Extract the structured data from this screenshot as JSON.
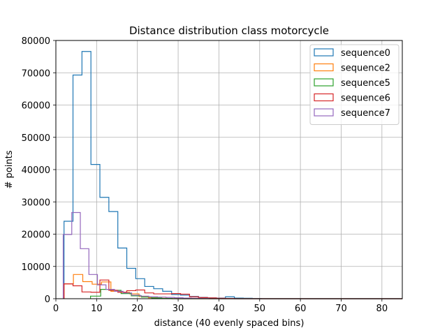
{
  "chart_data": {
    "type": "histogram",
    "title": "Distance distribution class motorcycle",
    "xlabel": "distance (40 evenly spaced bins)",
    "ylabel": "# points",
    "xlim": [
      0,
      85
    ],
    "ylim": [
      0,
      80000
    ],
    "x_ticks": [
      0,
      10,
      20,
      30,
      40,
      50,
      60,
      70,
      80
    ],
    "y_ticks": [
      0,
      10000,
      20000,
      30000,
      40000,
      50000,
      60000,
      70000,
      80000
    ],
    "grid": true,
    "legend_position": "top-right",
    "series": [
      {
        "name": "sequence0",
        "color": "#1f77b4",
        "bins": [
          [
            2.0,
            4.2,
            24000
          ],
          [
            4.2,
            6.4,
            69300
          ],
          [
            6.4,
            8.6,
            76600
          ],
          [
            8.6,
            10.8,
            41600
          ],
          [
            10.8,
            13.0,
            31400
          ],
          [
            13.0,
            15.2,
            27000
          ],
          [
            15.2,
            17.4,
            15700
          ],
          [
            17.4,
            19.6,
            9400
          ],
          [
            19.6,
            21.8,
            6200
          ],
          [
            21.8,
            24.0,
            3800
          ],
          [
            24.0,
            26.2,
            3100
          ],
          [
            26.2,
            28.4,
            2300
          ],
          [
            28.4,
            30.6,
            1300
          ],
          [
            30.6,
            32.8,
            1100
          ],
          [
            32.8,
            35.0,
            700
          ],
          [
            35.0,
            37.2,
            400
          ],
          [
            37.2,
            39.4,
            250
          ],
          [
            39.4,
            41.6,
            200
          ],
          [
            41.6,
            43.8,
            600
          ],
          [
            43.8,
            46.0,
            200
          ],
          [
            46.0,
            48.2,
            150
          ],
          [
            48.2,
            50.4,
            60
          ],
          [
            50.4,
            85.0,
            0
          ]
        ]
      },
      {
        "name": "sequence2",
        "color": "#ff7f0e",
        "bins": [
          [
            2.0,
            4.3,
            4600
          ],
          [
            4.3,
            6.6,
            7500
          ],
          [
            6.6,
            8.9,
            5300
          ],
          [
            8.9,
            11.2,
            4500
          ],
          [
            11.2,
            13.5,
            5200
          ],
          [
            13.5,
            15.8,
            2300
          ],
          [
            15.8,
            18.1,
            2000
          ],
          [
            18.1,
            20.4,
            1500
          ],
          [
            20.4,
            22.7,
            700
          ],
          [
            22.7,
            25.0,
            300
          ],
          [
            25.0,
            27.3,
            150
          ],
          [
            27.3,
            29.6,
            60
          ],
          [
            29.6,
            85.0,
            0
          ]
        ]
      },
      {
        "name": "sequence5",
        "color": "#2ca02c",
        "bins": [
          [
            8.5,
            11.0,
            800
          ],
          [
            11.0,
            13.5,
            2900
          ],
          [
            13.5,
            16.0,
            2600
          ],
          [
            16.0,
            18.5,
            1600
          ],
          [
            18.5,
            21.0,
            900
          ],
          [
            21.0,
            23.5,
            500
          ],
          [
            23.5,
            26.0,
            250
          ],
          [
            26.0,
            28.5,
            100
          ],
          [
            28.5,
            85.0,
            0
          ]
        ]
      },
      {
        "name": "sequence6",
        "color": "#d62728",
        "bins": [
          [
            2.0,
            4.2,
            4600
          ],
          [
            4.2,
            6.4,
            4000
          ],
          [
            6.4,
            8.6,
            2100
          ],
          [
            8.6,
            10.8,
            2000
          ],
          [
            10.8,
            13.0,
            5800
          ],
          [
            13.0,
            15.2,
            2600
          ],
          [
            15.2,
            17.4,
            2000
          ],
          [
            17.4,
            19.6,
            2500
          ],
          [
            19.6,
            21.8,
            2700
          ],
          [
            21.8,
            24.0,
            1800
          ],
          [
            24.0,
            26.2,
            1500
          ],
          [
            26.2,
            28.4,
            1500
          ],
          [
            28.4,
            30.6,
            1600
          ],
          [
            30.6,
            32.8,
            1400
          ],
          [
            32.8,
            35.0,
            600
          ],
          [
            35.0,
            37.2,
            350
          ],
          [
            37.2,
            39.4,
            250
          ],
          [
            39.4,
            41.6,
            150
          ],
          [
            41.6,
            43.8,
            80
          ],
          [
            43.8,
            85.0,
            0
          ]
        ]
      },
      {
        "name": "sequence7",
        "color": "#9467bd",
        "bins": [
          [
            1.8,
            3.9,
            19900
          ],
          [
            3.9,
            6.0,
            26700
          ],
          [
            6.0,
            8.1,
            15500
          ],
          [
            8.1,
            10.2,
            7500
          ],
          [
            10.2,
            12.3,
            4300
          ],
          [
            12.3,
            14.4,
            2900
          ],
          [
            14.4,
            16.5,
            2300
          ],
          [
            16.5,
            18.6,
            1800
          ],
          [
            18.6,
            20.7,
            1100
          ],
          [
            20.7,
            22.8,
            800
          ],
          [
            22.8,
            24.9,
            600
          ],
          [
            24.9,
            27.0,
            500
          ],
          [
            27.0,
            29.1,
            400
          ],
          [
            29.1,
            31.2,
            300
          ],
          [
            31.2,
            33.3,
            200
          ],
          [
            33.3,
            35.4,
            150
          ],
          [
            35.4,
            37.5,
            100
          ],
          [
            37.5,
            85.0,
            0
          ]
        ]
      }
    ]
  }
}
